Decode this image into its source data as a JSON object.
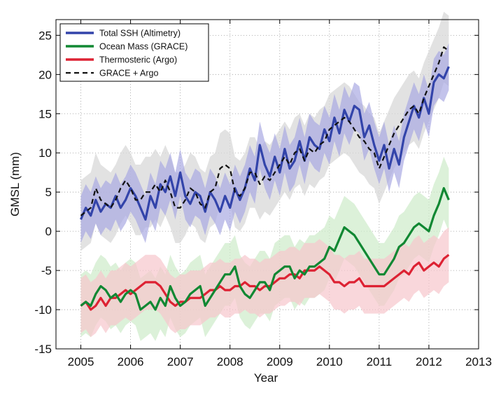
{
  "chart_data": {
    "type": "line",
    "xlabel": "Year",
    "ylabel": "GMSL (mm)",
    "xlim": [
      2004.5,
      2013
    ],
    "ylim": [
      -15,
      27
    ],
    "xticks": [
      2005,
      2006,
      2007,
      2008,
      2009,
      2010,
      2011,
      2012,
      2013
    ],
    "yticks": [
      -15,
      -10,
      -5,
      0,
      5,
      10,
      15,
      20,
      25
    ],
    "xtick_labels": [
      "2005",
      "2006",
      "2007",
      "2008",
      "2009",
      "2010",
      "2011",
      "2012",
      "2013"
    ],
    "ytick_labels": [
      "-15",
      "-10",
      "-5",
      "0",
      "5",
      "10",
      "15",
      "20",
      "25"
    ],
    "grid": true,
    "legend_position": "top-left",
    "x": [
      2005.0,
      2005.1,
      2005.2,
      2005.3,
      2005.4,
      2005.5,
      2005.6,
      2005.7,
      2005.8,
      2005.9,
      2006.0,
      2006.1,
      2006.2,
      2006.3,
      2006.4,
      2006.5,
      2006.6,
      2006.7,
      2006.8,
      2006.9,
      2007.0,
      2007.1,
      2007.2,
      2007.3,
      2007.4,
      2007.5,
      2007.6,
      2007.7,
      2007.8,
      2007.9,
      2008.0,
      2008.1,
      2008.2,
      2008.3,
      2008.4,
      2008.5,
      2008.6,
      2008.7,
      2008.8,
      2008.9,
      2009.0,
      2009.1,
      2009.2,
      2009.3,
      2009.4,
      2009.5,
      2009.6,
      2009.7,
      2009.8,
      2009.9,
      2010.0,
      2010.1,
      2010.2,
      2010.3,
      2010.4,
      2010.5,
      2010.6,
      2010.7,
      2010.8,
      2010.9,
      2011.0,
      2011.1,
      2011.2,
      2011.3,
      2011.4,
      2011.5,
      2011.6,
      2011.7,
      2011.8,
      2011.9,
      2012.0,
      2012.1,
      2012.2,
      2012.3,
      2012.4
    ],
    "series": [
      {
        "name": "Total SSH (Altimetry)",
        "color": "#3344aa",
        "style": "solid",
        "band_color": "#a9a9e3",
        "band_halfwidth": 3,
        "values": [
          1.5,
          3.0,
          2.0,
          4.0,
          2.5,
          3.5,
          3.0,
          4.5,
          3.0,
          4.0,
          5.5,
          4.5,
          3.0,
          1.5,
          4.5,
          3.0,
          6.0,
          5.0,
          7.0,
          4.5,
          7.5,
          4.5,
          3.5,
          5.0,
          4.5,
          2.5,
          5.0,
          4.0,
          2.5,
          4.5,
          3.0,
          5.5,
          4.0,
          5.5,
          8.0,
          6.5,
          11.0,
          8.5,
          7.0,
          9.5,
          7.5,
          10.5,
          8.0,
          9.0,
          11.5,
          9.0,
          12.0,
          11.0,
          10.5,
          13.0,
          11.5,
          14.5,
          12.5,
          15.5,
          14.0,
          16.0,
          15.5,
          12.0,
          13.5,
          11.0,
          9.0,
          11.0,
          8.0,
          10.5,
          8.5,
          12.0,
          14.0,
          16.0,
          14.5,
          17.0,
          15.0,
          19.0,
          20.0,
          19.5,
          21.0
        ]
      },
      {
        "name": "Ocean Mass (GRACE)",
        "color": "#118833",
        "style": "solid",
        "band_color": "#cdebc9",
        "band_halfwidth": 4,
        "values": [
          -9.5,
          -9.0,
          -9.5,
          -8.0,
          -7.0,
          -7.5,
          -8.5,
          -8.0,
          -9.0,
          -8.0,
          -7.5,
          -8.0,
          -10.0,
          -9.5,
          -9.0,
          -10.0,
          -8.5,
          -9.5,
          -7.0,
          -8.5,
          -9.5,
          -9.0,
          -8.0,
          -7.5,
          -7.0,
          -9.5,
          -8.5,
          -7.5,
          -6.5,
          -5.5,
          -5.5,
          -4.5,
          -7.0,
          -8.0,
          -8.5,
          -7.5,
          -6.5,
          -6.5,
          -7.5,
          -5.5,
          -5.0,
          -4.5,
          -4.5,
          -6.0,
          -5.0,
          -5.5,
          -4.5,
          -4.5,
          -4.0,
          -3.5,
          -2.0,
          -2.5,
          -1.0,
          0.5,
          0.0,
          -0.5,
          -1.5,
          -2.5,
          -3.5,
          -4.5,
          -5.5,
          -5.5,
          -4.5,
          -3.5,
          -2.0,
          -1.5,
          -0.5,
          0.5,
          1.0,
          0.5,
          0.0,
          2.0,
          3.5,
          5.5,
          4.0
        ]
      },
      {
        "name": "Thermosteric (Argo)",
        "color": "#dd2233",
        "style": "solid",
        "band_color": "#f6c6cc",
        "band_halfwidth": 3.5,
        "values": [
          -9.5,
          -9.0,
          -10.0,
          -9.5,
          -8.5,
          -9.5,
          -8.5,
          -8.5,
          -8.0,
          -7.5,
          -8.0,
          -7.5,
          -7.0,
          -6.5,
          -6.5,
          -6.5,
          -7.0,
          -8.0,
          -9.0,
          -9.5,
          -9.0,
          -9.0,
          -8.5,
          -8.5,
          -8.5,
          -8.0,
          -7.5,
          -7.5,
          -7.0,
          -7.5,
          -7.5,
          -7.0,
          -7.0,
          -6.5,
          -7.0,
          -7.0,
          -7.5,
          -7.0,
          -7.0,
          -6.5,
          -6.0,
          -6.0,
          -5.5,
          -5.5,
          -6.0,
          -5.0,
          -5.0,
          -5.0,
          -4.5,
          -5.0,
          -5.5,
          -6.5,
          -6.5,
          -7.0,
          -6.5,
          -6.5,
          -6.0,
          -7.0,
          -7.0,
          -7.0,
          -7.0,
          -7.0,
          -6.5,
          -6.0,
          -5.5,
          -5.0,
          -5.5,
          -4.5,
          -4.0,
          -5.0,
          -4.5,
          -4.0,
          -4.5,
          -3.5,
          -3.0
        ]
      },
      {
        "name": "GRACE + Argo",
        "color": "#111111",
        "style": "dashed",
        "band_color": "#d8d8d8",
        "band_halfwidth": 4.5,
        "values": [
          2.0,
          2.5,
          3.0,
          5.5,
          4.0,
          3.5,
          3.0,
          4.0,
          5.5,
          6.5,
          5.5,
          4.0,
          4.0,
          5.0,
          5.0,
          6.0,
          5.0,
          6.5,
          5.0,
          3.0,
          3.0,
          4.0,
          5.5,
          5.0,
          3.5,
          3.0,
          5.0,
          5.5,
          8.0,
          8.5,
          8.0,
          5.0,
          4.5,
          5.5,
          7.5,
          7.5,
          6.0,
          7.0,
          6.5,
          7.5,
          8.5,
          9.5,
          8.5,
          10.0,
          10.5,
          9.0,
          10.5,
          10.0,
          11.0,
          11.5,
          13.0,
          13.5,
          14.0,
          14.5,
          14.0,
          13.0,
          12.0,
          11.5,
          10.5,
          10.0,
          8.0,
          9.5,
          11.0,
          12.5,
          13.5,
          14.5,
          15.5,
          16.0,
          15.0,
          17.0,
          18.5,
          20.0,
          21.5,
          23.5,
          23.0
        ]
      }
    ]
  }
}
